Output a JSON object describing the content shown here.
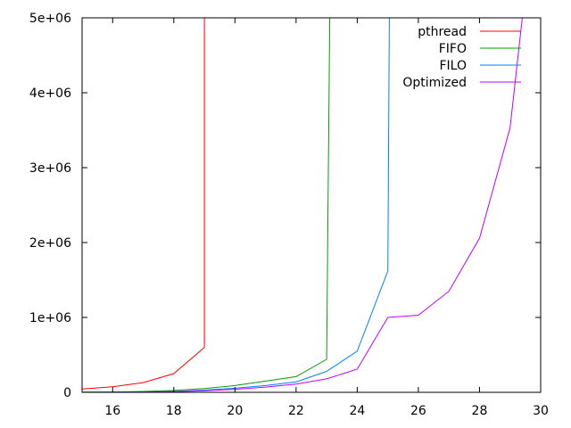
{
  "chart_data": {
    "type": "line",
    "title": "",
    "xlabel": "",
    "ylabel": "",
    "xlim": [
      15,
      30
    ],
    "ylim": [
      0,
      5000000
    ],
    "grid": false,
    "legend_position": "top-right",
    "x_ticks": [
      16,
      18,
      20,
      22,
      24,
      26,
      28,
      30
    ],
    "x_tick_labels": [
      "16",
      "18",
      "20",
      "22",
      "24",
      "26",
      "28",
      "30"
    ],
    "y_ticks": [
      0,
      1000000,
      2000000,
      3000000,
      4000000,
      5000000
    ],
    "y_tick_labels": [
      "0",
      "1e+06",
      "2e+06",
      "3e+06",
      "4e+06",
      "5e+06"
    ],
    "series": [
      {
        "name": "pthread",
        "color": "#ff0000",
        "points": [
          [
            15,
            45000
          ],
          [
            16,
            75000
          ],
          [
            17,
            130000
          ],
          [
            18,
            250000
          ],
          [
            19,
            600000
          ],
          [
            19,
            5000000
          ]
        ]
      },
      {
        "name": "FIFO",
        "color": "#00a000",
        "points": [
          [
            15,
            2000
          ],
          [
            16,
            5000
          ],
          [
            17,
            12000
          ],
          [
            18,
            25000
          ],
          [
            19,
            50000
          ],
          [
            20,
            90000
          ],
          [
            21,
            150000
          ],
          [
            22,
            210000
          ],
          [
            23,
            440000
          ],
          [
            23.1,
            5000000
          ]
        ]
      },
      {
        "name": "FILO",
        "color": "#0080ff",
        "points": [
          [
            15,
            1000
          ],
          [
            16,
            2000
          ],
          [
            17,
            5000
          ],
          [
            18,
            12000
          ],
          [
            19,
            30000
          ],
          [
            20,
            55000
          ],
          [
            21,
            90000
          ],
          [
            22,
            140000
          ],
          [
            23,
            280000
          ],
          [
            24,
            550000
          ],
          [
            25,
            1620000
          ],
          [
            25.05,
            5000000
          ]
        ]
      },
      {
        "name": "Optimized",
        "color": "#c000ff",
        "points": [
          [
            15,
            500
          ],
          [
            16,
            1000
          ],
          [
            17,
            3000
          ],
          [
            18,
            8000
          ],
          [
            19,
            20000
          ],
          [
            20,
            40000
          ],
          [
            21,
            70000
          ],
          [
            22,
            110000
          ],
          [
            23,
            180000
          ],
          [
            24,
            310000
          ],
          [
            25,
            1000000
          ],
          [
            26,
            1030000
          ],
          [
            27,
            1350000
          ],
          [
            28,
            2060000
          ],
          [
            29,
            3530000
          ],
          [
            29.4,
            5000000
          ]
        ]
      }
    ]
  }
}
